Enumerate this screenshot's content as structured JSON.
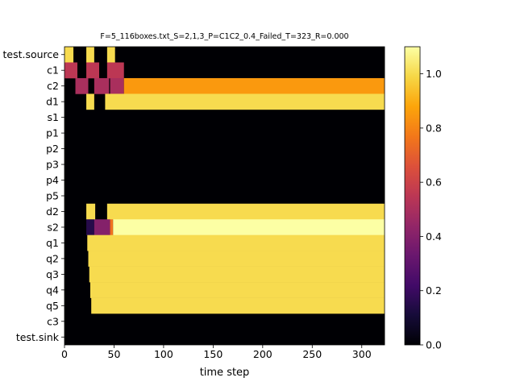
{
  "chart_data": {
    "type": "heatmap",
    "title": "F=5_116boxes.txt_S=2,1,3_P=C1C2_0.4_Failed_T=323_R=0.000",
    "xlabel": "time step",
    "ylabel": "",
    "x_ticks": [
      0,
      50,
      100,
      150,
      200,
      250,
      300
    ],
    "xlim": [
      0,
      323
    ],
    "rows": [
      "test.source",
      "c1",
      "c2",
      "d1",
      "s1",
      "p1",
      "p2",
      "p3",
      "p4",
      "p5",
      "d2",
      "s2",
      "q1",
      "q2",
      "q3",
      "q4",
      "q5",
      "c3",
      "test.sink"
    ],
    "colormap": "inferno",
    "colorbar": {
      "range": [
        0.0,
        1.1
      ],
      "ticks": [
        "0.0",
        "0.2",
        "0.4",
        "0.6",
        "0.8",
        "1.0"
      ]
    },
    "segments": [
      {
        "row": "test.source",
        "spans": [
          [
            0,
            9,
            1.0
          ],
          [
            22,
            30,
            1.0
          ],
          [
            43,
            51,
            1.0
          ]
        ]
      },
      {
        "row": "c1",
        "spans": [
          [
            0,
            13,
            0.55
          ],
          [
            22,
            35,
            0.55
          ],
          [
            43,
            60,
            0.55
          ]
        ]
      },
      {
        "row": "c2",
        "spans": [
          [
            11,
            24,
            0.5
          ],
          [
            30,
            45,
            0.5
          ],
          [
            46,
            60,
            0.5
          ],
          [
            60,
            323,
            0.85
          ]
        ]
      },
      {
        "row": "d1",
        "spans": [
          [
            22,
            30,
            1.0
          ],
          [
            41,
            323,
            1.0
          ]
        ]
      },
      {
        "row": "d2",
        "spans": [
          [
            22,
            31,
            1.0
          ],
          [
            43,
            323,
            1.0
          ]
        ]
      },
      {
        "row": "s2",
        "spans": [
          [
            22,
            30,
            0.15
          ],
          [
            30,
            46,
            0.4
          ],
          [
            46,
            49,
            0.75
          ],
          [
            49,
            323,
            1.1
          ]
        ]
      },
      {
        "row": "q1",
        "spans": [
          [
            23,
            323,
            1.0
          ]
        ]
      },
      {
        "row": "q2",
        "spans": [
          [
            24,
            323,
            1.0
          ]
        ]
      },
      {
        "row": "q3",
        "spans": [
          [
            25,
            323,
            1.0
          ]
        ]
      },
      {
        "row": "q4",
        "spans": [
          [
            26,
            323,
            1.0
          ]
        ]
      },
      {
        "row": "q5",
        "spans": [
          [
            27,
            323,
            1.0
          ]
        ]
      }
    ],
    "colors": {
      "background": "#000004",
      "value_1_0": "#f1de4a",
      "value_1_1": "#fcfea4",
      "value_0_85": "#fca50a",
      "value_0_4": "#6a176e"
    }
  }
}
